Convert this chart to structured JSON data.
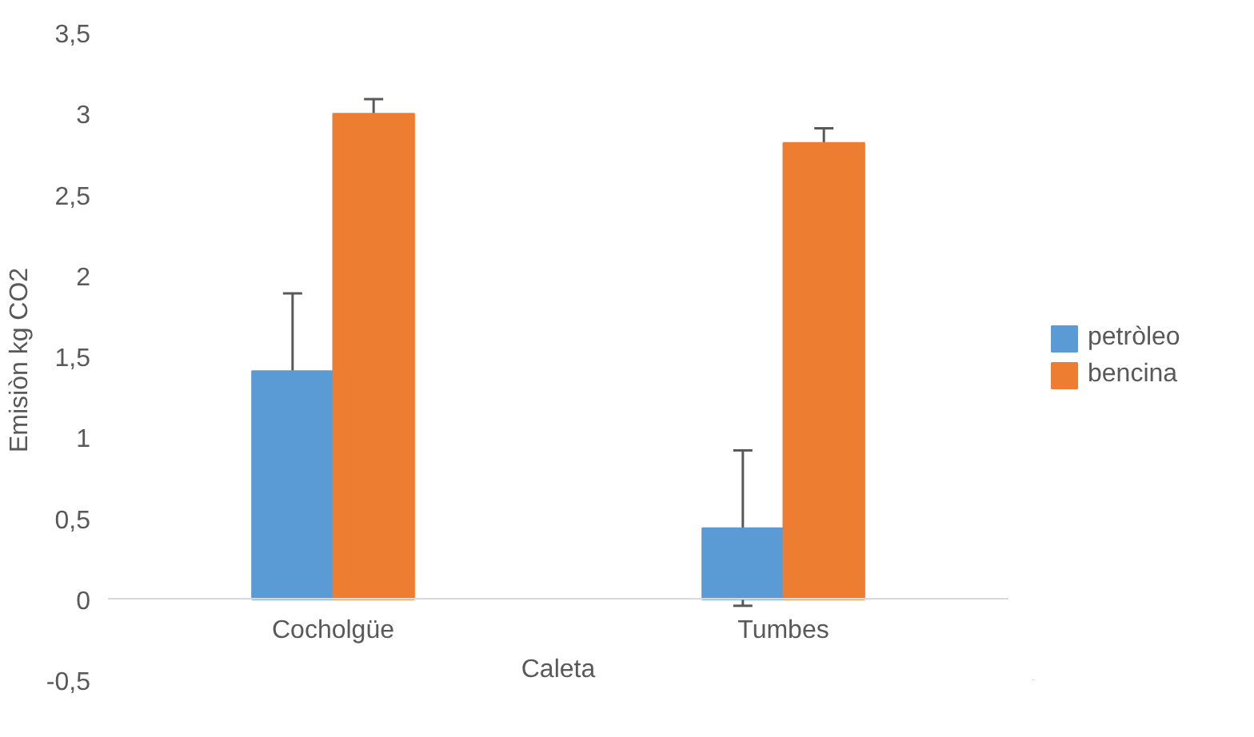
{
  "chart_data": {
    "type": "bar",
    "xlabel": "Caleta",
    "ylabel": "Emisiòn  kg CO2",
    "categories": [
      "Cocholgüe",
      "Tumbes"
    ],
    "series": [
      {
        "name": "petròleo",
        "color": "#5b9bd5",
        "values": [
          1.41,
          0.44
        ],
        "errors": [
          0.48,
          0.48
        ]
      },
      {
        "name": "bencina",
        "color": "#ed7d31",
        "values": [
          3.0,
          2.82
        ],
        "errors": [
          0.09,
          0.09
        ]
      }
    ],
    "ylim": [
      -0.5,
      3.5
    ],
    "yticks": [
      {
        "value": -0.5,
        "label": "-0,5"
      },
      {
        "value": 0,
        "label": "0"
      },
      {
        "value": 0.5,
        "label": "0,5"
      },
      {
        "value": 1,
        "label": "1"
      },
      {
        "value": 1.5,
        "label": "1,5"
      },
      {
        "value": 2,
        "label": "2"
      },
      {
        "value": 2.5,
        "label": "2,5"
      },
      {
        "value": 3,
        "label": "3"
      },
      {
        "value": 3.5,
        "label": "3,5"
      }
    ],
    "grid": false,
    "legend": "right"
  }
}
